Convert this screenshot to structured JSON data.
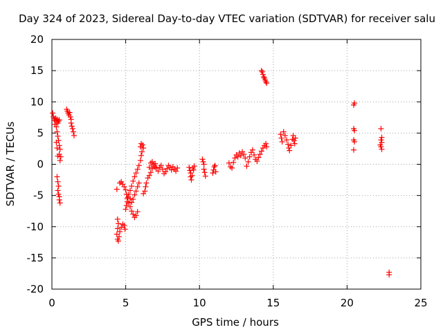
{
  "chart_data": {
    "type": "scatter",
    "title": "Day 324 of 2023, Sidereal Day-to-day VTEC variation (SDTVAR) for receiver salu",
    "xlabel": "GPS time / hours",
    "ylabel": "SDTVAR / TECUs",
    "xlim": [
      0,
      25
    ],
    "ylim": [
      -20,
      20
    ],
    "xticks": [
      0,
      5,
      10,
      15,
      20,
      25
    ],
    "yticks": [
      -20,
      -15,
      -10,
      -5,
      0,
      5,
      10,
      15,
      20
    ],
    "grid": true,
    "marker": "+",
    "color": "#ff0000",
    "series": [
      {
        "name": "SDTVAR",
        "points": [
          [
            0.05,
            8.2
          ],
          [
            0.1,
            7.6
          ],
          [
            0.15,
            7.3
          ],
          [
            0.2,
            7.0
          ],
          [
            0.25,
            7.4
          ],
          [
            0.3,
            6.8
          ],
          [
            0.35,
            7.2
          ],
          [
            0.4,
            6.6
          ],
          [
            0.45,
            6.9
          ],
          [
            0.5,
            7.1
          ],
          [
            0.2,
            6.4
          ],
          [
            0.3,
            6.0
          ],
          [
            0.35,
            5.2
          ],
          [
            0.4,
            4.5
          ],
          [
            0.45,
            3.8
          ],
          [
            0.5,
            3.0
          ],
          [
            0.55,
            2.4
          ],
          [
            0.5,
            1.6
          ],
          [
            0.4,
            1.3
          ],
          [
            0.6,
            1.2
          ],
          [
            0.55,
            0.6
          ],
          [
            0.35,
            2.6
          ],
          [
            0.3,
            3.5
          ],
          [
            0.35,
            -2.0
          ],
          [
            0.4,
            -2.8
          ],
          [
            0.45,
            -3.5
          ],
          [
            0.4,
            -4.2
          ],
          [
            0.45,
            -4.8
          ],
          [
            0.5,
            -5.2
          ],
          [
            0.5,
            -5.7
          ],
          [
            0.55,
            -6.2
          ],
          [
            1.0,
            8.8
          ],
          [
            1.05,
            8.5
          ],
          [
            1.1,
            8.2
          ],
          [
            1.15,
            7.9
          ],
          [
            1.2,
            8.3
          ],
          [
            1.25,
            7.6
          ],
          [
            1.3,
            7.2
          ],
          [
            1.3,
            6.6
          ],
          [
            1.35,
            6.1
          ],
          [
            1.4,
            5.7
          ],
          [
            1.45,
            5.2
          ],
          [
            1.5,
            4.6
          ],
          [
            4.4,
            -4.0
          ],
          [
            4.45,
            -8.8
          ],
          [
            4.5,
            -9.5
          ],
          [
            4.45,
            -10.3
          ],
          [
            4.4,
            -11.2
          ],
          [
            4.45,
            -12.0
          ],
          [
            4.5,
            -12.3
          ],
          [
            4.55,
            -11.6
          ],
          [
            4.6,
            -10.8
          ],
          [
            4.7,
            -10.1
          ],
          [
            4.8,
            -9.6
          ],
          [
            4.9,
            -9.8
          ],
          [
            4.95,
            -10.4
          ],
          [
            4.6,
            -3.0
          ],
          [
            4.7,
            -2.8
          ],
          [
            4.8,
            -3.2
          ],
          [
            4.9,
            -3.6
          ],
          [
            5.0,
            -4.1
          ],
          [
            5.05,
            -4.8
          ],
          [
            5.1,
            -5.5
          ],
          [
            5.2,
            -6.2
          ],
          [
            5.3,
            -6.8
          ],
          [
            5.4,
            -7.5
          ],
          [
            5.5,
            -8.0
          ],
          [
            5.6,
            -8.5
          ],
          [
            5.7,
            -8.2
          ],
          [
            5.8,
            -7.6
          ],
          [
            5.0,
            -7.2
          ],
          [
            5.05,
            -6.6
          ],
          [
            5.1,
            -6.0
          ],
          [
            5.15,
            -5.3
          ],
          [
            5.2,
            -4.8
          ],
          [
            5.3,
            -5.5
          ],
          [
            5.4,
            -6.1
          ],
          [
            5.5,
            -5.6
          ],
          [
            5.6,
            -4.9
          ],
          [
            5.7,
            -4.3
          ],
          [
            5.8,
            -3.6
          ],
          [
            5.9,
            -3.0
          ],
          [
            5.3,
            -4.2
          ],
          [
            5.4,
            -3.5
          ],
          [
            5.5,
            -2.7
          ],
          [
            5.6,
            -2.0
          ],
          [
            5.7,
            -1.4
          ],
          [
            5.8,
            -0.8
          ],
          [
            5.9,
            -0.2
          ],
          [
            6.0,
            0.6
          ],
          [
            6.05,
            1.4
          ],
          [
            6.1,
            2.0
          ],
          [
            6.0,
            2.8
          ],
          [
            6.05,
            3.3
          ],
          [
            6.15,
            3.1
          ],
          [
            6.2,
            2.6
          ],
          [
            6.2,
            -4.7
          ],
          [
            6.3,
            -4.3
          ],
          [
            6.35,
            -3.6
          ],
          [
            6.4,
            -3.0
          ],
          [
            6.5,
            -2.2
          ],
          [
            6.6,
            -1.8
          ],
          [
            6.7,
            -1.3
          ],
          [
            6.8,
            -0.7
          ],
          [
            6.9,
            -0.3
          ],
          [
            7.0,
            0.1
          ],
          [
            7.1,
            -0.6
          ],
          [
            7.2,
            -1.1
          ],
          [
            7.3,
            -0.5
          ],
          [
            7.4,
            -0.2
          ],
          [
            6.6,
            -0.5
          ],
          [
            6.7,
            0.2
          ],
          [
            6.8,
            0.4
          ],
          [
            6.9,
            -0.1
          ],
          [
            7.0,
            -0.5
          ],
          [
            7.5,
            -0.8
          ],
          [
            7.6,
            -1.5
          ],
          [
            7.7,
            -1.2
          ],
          [
            7.8,
            -0.7
          ],
          [
            7.9,
            -0.2
          ],
          [
            8.0,
            -0.5
          ],
          [
            8.1,
            -0.9
          ],
          [
            8.2,
            -0.4
          ],
          [
            8.3,
            -0.8
          ],
          [
            8.4,
            -1.1
          ],
          [
            8.5,
            -0.6
          ],
          [
            9.3,
            -0.5
          ],
          [
            9.35,
            -1.0
          ],
          [
            9.4,
            -1.4
          ],
          [
            9.4,
            -2.0
          ],
          [
            9.45,
            -2.5
          ],
          [
            9.5,
            -1.8
          ],
          [
            9.55,
            -0.6
          ],
          [
            9.6,
            -0.9
          ],
          [
            9.65,
            -0.3
          ],
          [
            10.2,
            0.8
          ],
          [
            10.25,
            0.4
          ],
          [
            10.3,
            0.0
          ],
          [
            10.3,
            -0.8
          ],
          [
            10.35,
            -1.3
          ],
          [
            10.4,
            -1.9
          ],
          [
            10.9,
            -1.4
          ],
          [
            10.95,
            -0.9
          ],
          [
            11.0,
            -0.4
          ],
          [
            11.05,
            -0.2
          ],
          [
            11.1,
            -1.2
          ],
          [
            12.0,
            0.2
          ],
          [
            12.1,
            -0.4
          ],
          [
            12.2,
            -0.6
          ],
          [
            12.3,
            0.3
          ],
          [
            12.4,
            1.0
          ],
          [
            12.5,
            1.5
          ],
          [
            12.6,
            1.2
          ],
          [
            12.7,
            1.8
          ],
          [
            12.8,
            1.4
          ],
          [
            12.9,
            2.0
          ],
          [
            13.0,
            1.6
          ],
          [
            13.1,
            1.0
          ],
          [
            13.2,
            -0.3
          ],
          [
            13.3,
            0.4
          ],
          [
            13.4,
            1.2
          ],
          [
            13.5,
            1.9
          ],
          [
            13.6,
            2.3
          ],
          [
            13.7,
            1.5
          ],
          [
            13.8,
            0.8
          ],
          [
            13.9,
            0.5
          ],
          [
            14.0,
            1.1
          ],
          [
            14.1,
            1.6
          ],
          [
            14.2,
            2.1
          ],
          [
            14.3,
            2.6
          ],
          [
            14.4,
            3.0
          ],
          [
            14.5,
            3.3
          ],
          [
            14.55,
            2.8
          ],
          [
            14.2,
            15.0
          ],
          [
            14.25,
            14.8
          ],
          [
            14.3,
            14.4
          ],
          [
            14.35,
            14.0
          ],
          [
            14.4,
            13.8
          ],
          [
            14.45,
            13.5
          ],
          [
            14.5,
            13.2
          ],
          [
            14.55,
            13.0
          ],
          [
            15.5,
            4.8
          ],
          [
            15.55,
            4.2
          ],
          [
            15.6,
            3.6
          ],
          [
            15.7,
            5.2
          ],
          [
            15.8,
            4.6
          ],
          [
            15.9,
            3.9
          ],
          [
            16.0,
            3.2
          ],
          [
            16.05,
            2.6
          ],
          [
            16.1,
            2.2
          ],
          [
            16.2,
            3.0
          ],
          [
            16.3,
            4.0
          ],
          [
            16.35,
            4.6
          ],
          [
            16.4,
            3.8
          ],
          [
            16.45,
            3.3
          ],
          [
            16.5,
            4.2
          ],
          [
            20.45,
            9.5
          ],
          [
            20.5,
            9.8
          ],
          [
            20.45,
            5.7
          ],
          [
            20.5,
            5.4
          ],
          [
            20.45,
            3.9
          ],
          [
            20.5,
            3.6
          ],
          [
            20.45,
            2.3
          ],
          [
            22.3,
            5.7
          ],
          [
            22.35,
            4.3
          ],
          [
            22.3,
            3.9
          ],
          [
            22.35,
            3.5
          ],
          [
            22.25,
            3.1
          ],
          [
            22.3,
            2.8
          ],
          [
            22.35,
            2.4
          ],
          [
            22.85,
            -17.3
          ],
          [
            22.85,
            -17.7
          ]
        ]
      }
    ]
  }
}
